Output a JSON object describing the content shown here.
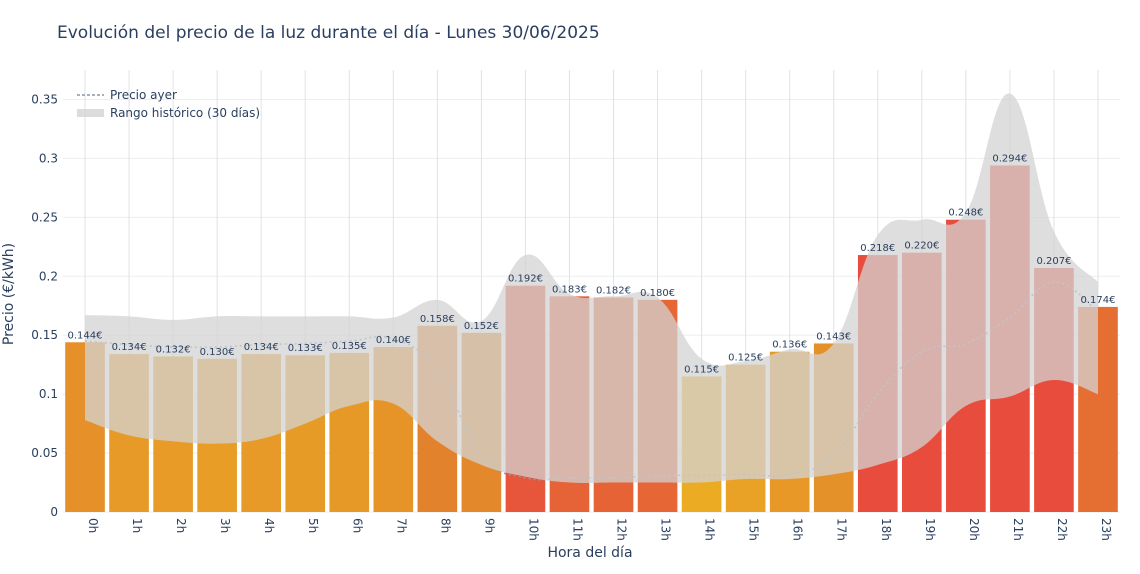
{
  "chart_data": {
    "type": "bar",
    "title": "Evolución del precio de la luz durante el día - Lunes 30/06/2025",
    "xlabel": "Hora del día",
    "ylabel": "Precio (€/kWh)",
    "ylim": [
      0,
      0.375
    ],
    "y_ticks": [
      "0",
      "0.05",
      "0.1",
      "0.15",
      "0.2",
      "0.25",
      "0.3",
      "0.35"
    ],
    "y_tick_values": [
      0,
      0.05,
      0.1,
      0.15,
      0.2,
      0.25,
      0.3,
      0.35
    ],
    "grid": true,
    "legend_position": "top-left",
    "categories": [
      "0h",
      "1h",
      "2h",
      "3h",
      "4h",
      "5h",
      "6h",
      "7h",
      "8h",
      "9h",
      "10h",
      "11h",
      "12h",
      "13h",
      "14h",
      "15h",
      "16h",
      "17h",
      "18h",
      "19h",
      "20h",
      "21h",
      "22h",
      "23h"
    ],
    "values": [
      0.144,
      0.134,
      0.132,
      0.13,
      0.134,
      0.133,
      0.135,
      0.14,
      0.158,
      0.152,
      0.192,
      0.183,
      0.182,
      0.18,
      0.115,
      0.125,
      0.136,
      0.143,
      0.218,
      0.22,
      0.248,
      0.294,
      0.207,
      0.174
    ],
    "value_labels": [
      "0.144€",
      "0.134€",
      "0.132€",
      "0.130€",
      "0.134€",
      "0.133€",
      "0.135€",
      "0.140€",
      "0.158€",
      "0.152€",
      "0.192€",
      "0.183€",
      "0.182€",
      "0.180€",
      "0.115€",
      "0.125€",
      "0.136€",
      "0.143€",
      "0.218€",
      "0.220€",
      "0.248€",
      "0.294€",
      "0.207€",
      "0.174€"
    ],
    "series": [
      {
        "name": "Precio ayer",
        "style": "dotted line",
        "color": "#8a97a6",
        "values": [
          0.145,
          0.142,
          0.14,
          0.14,
          0.142,
          0.143,
          0.145,
          0.147,
          0.12,
          0.048,
          0.029,
          0.029,
          0.029,
          0.031,
          0.031,
          0.032,
          0.032,
          0.048,
          0.1,
          0.136,
          0.143,
          0.165,
          0.195,
          0.17
        ]
      },
      {
        "name": "Rango histórico (30 días)",
        "style": "band",
        "color": "#d3d3d3",
        "upper": [
          0.167,
          0.166,
          0.163,
          0.166,
          0.166,
          0.166,
          0.166,
          0.165,
          0.18,
          0.162,
          0.218,
          0.185,
          0.183,
          0.182,
          0.13,
          0.128,
          0.138,
          0.143,
          0.235,
          0.248,
          0.254,
          0.355,
          0.238,
          0.195
        ],
        "lower": [
          0.078,
          0.065,
          0.06,
          0.058,
          0.062,
          0.075,
          0.09,
          0.092,
          0.06,
          0.04,
          0.03,
          0.025,
          0.025,
          0.025,
          0.025,
          0.028,
          0.028,
          0.032,
          0.04,
          0.055,
          0.09,
          0.098,
          0.112,
          0.1
        ]
      }
    ],
    "colors": {
      "bar_low": "#ecb021",
      "bar_mid": "#e28a2c",
      "bar_high": "#e8503b",
      "band": "#d3d3d3",
      "yesterday_line": "#8a97a6",
      "grid": "#ebedf0",
      "text": "#2a3f5f"
    }
  }
}
